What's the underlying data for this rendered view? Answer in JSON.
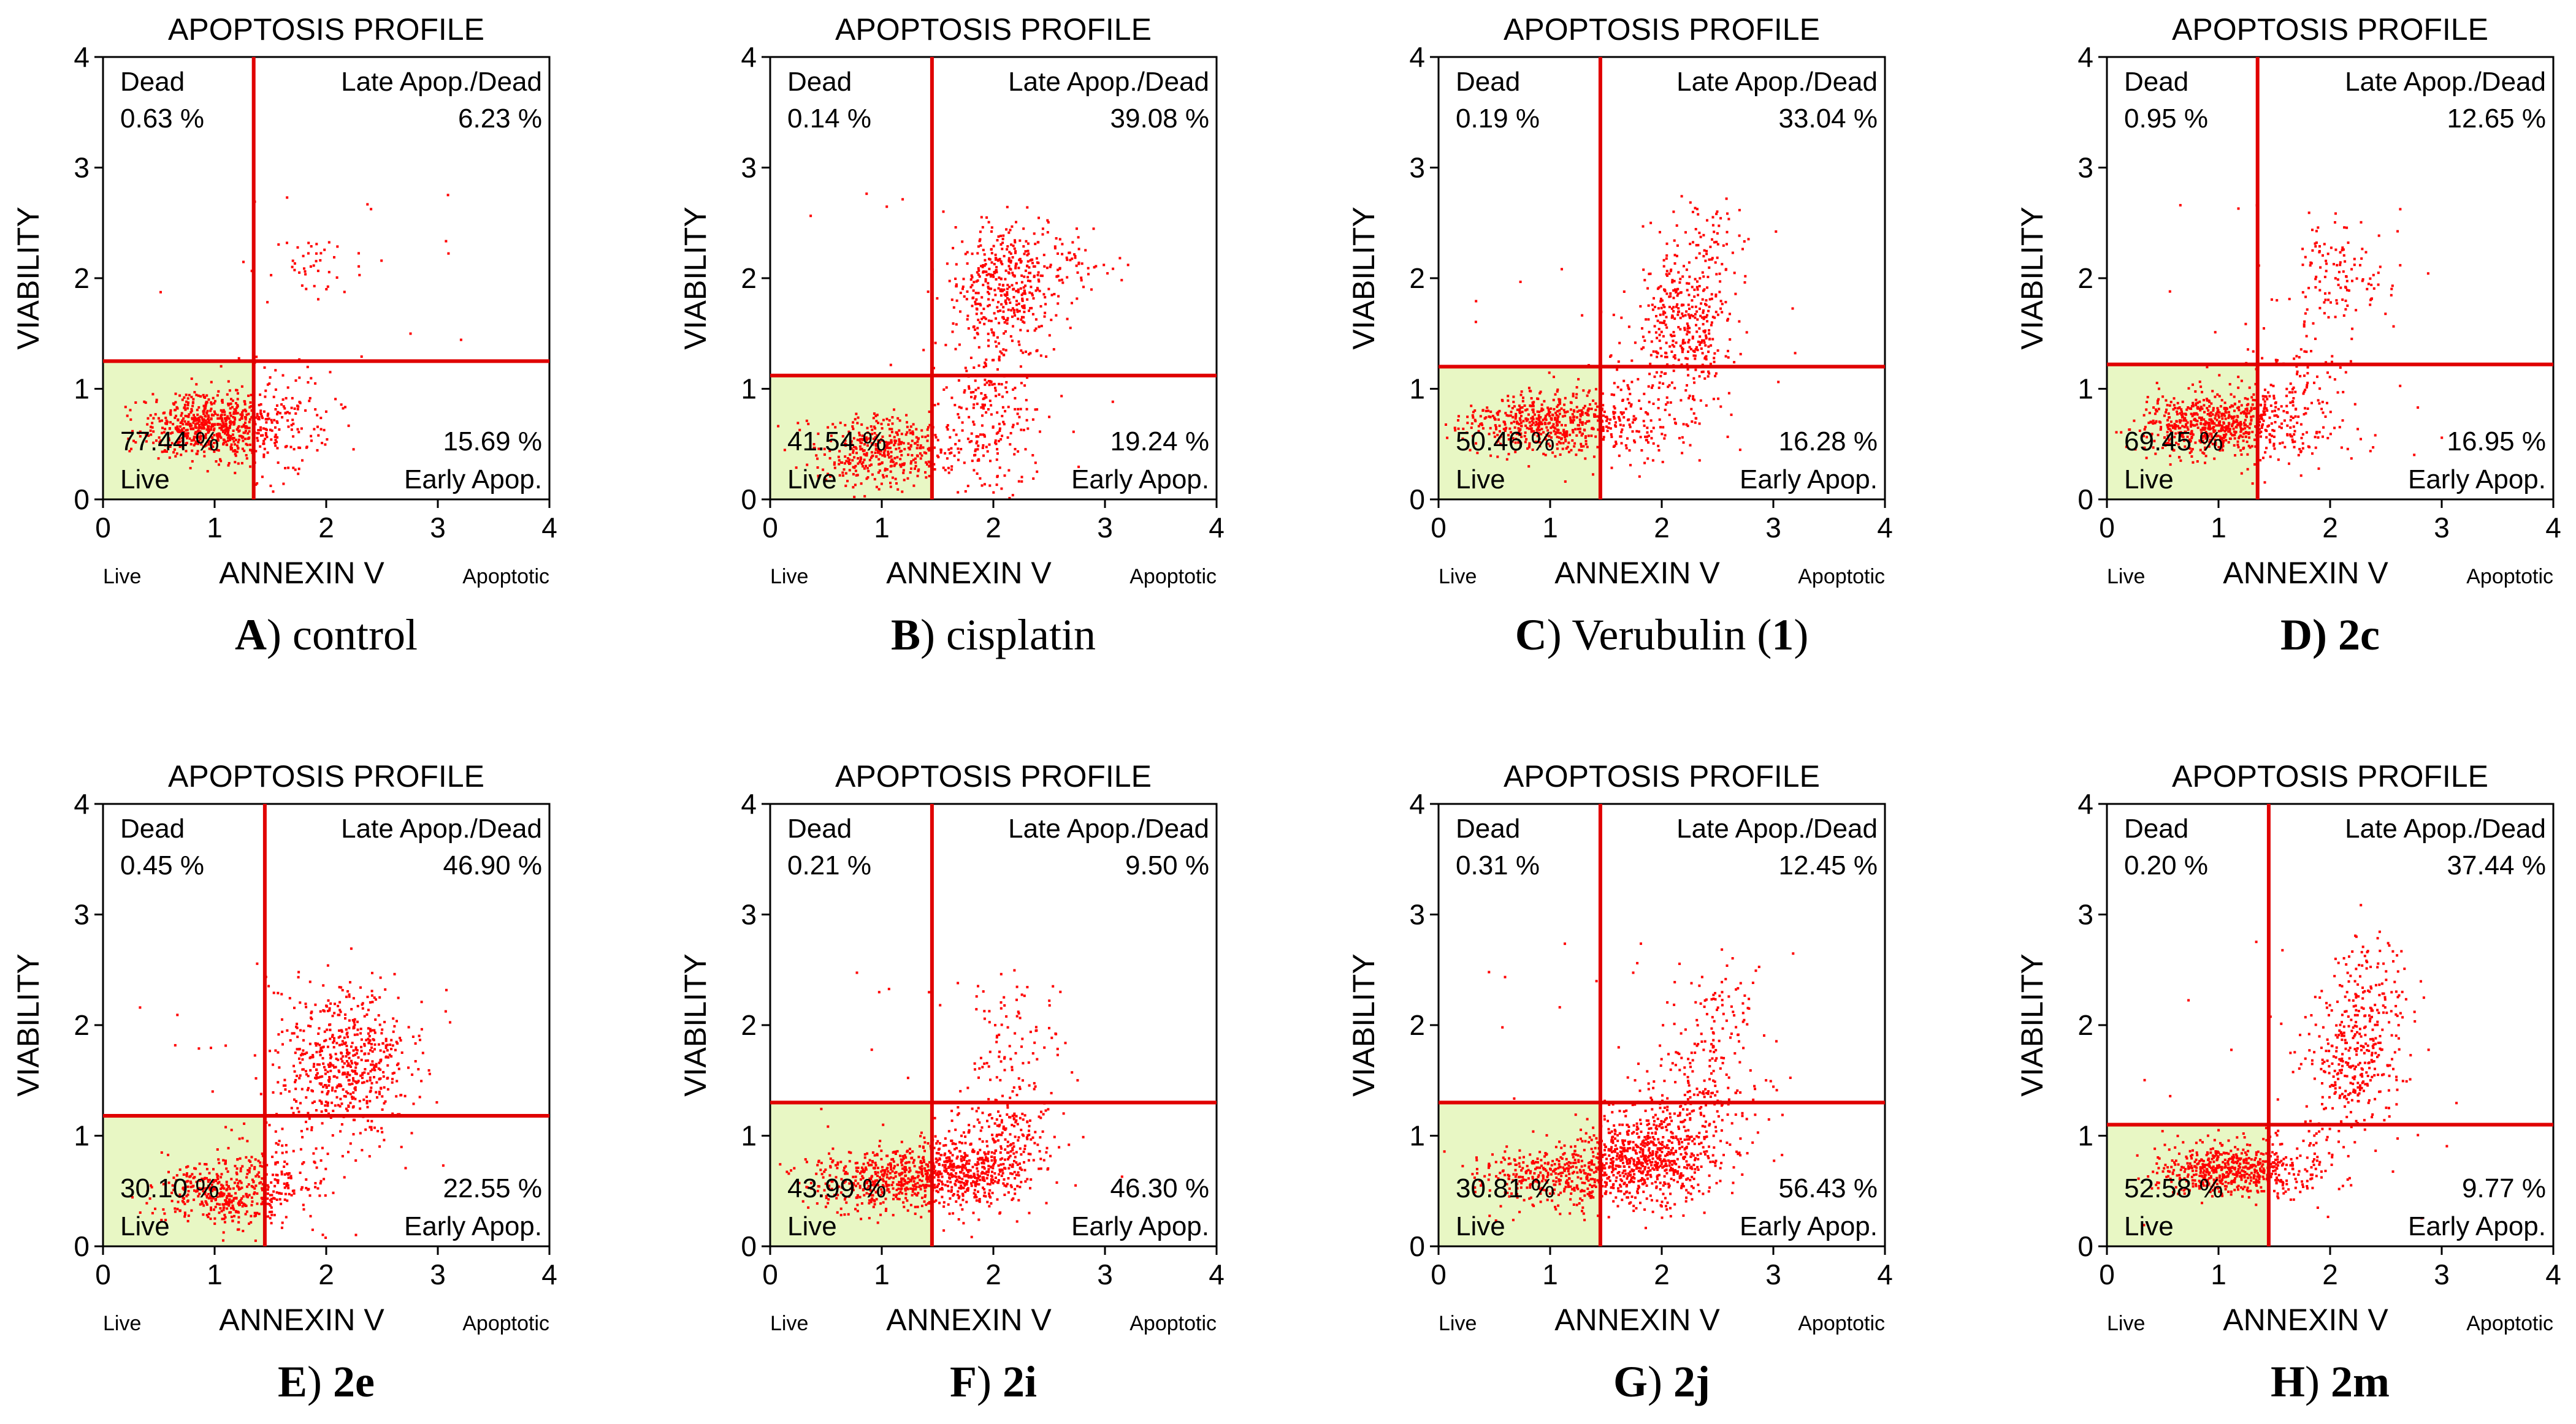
{
  "chart_data": [
    {
      "type": "scatter",
      "title": "APOPTOSIS PROFILE",
      "xlabel": "ANNEXIN V",
      "ylabel": "VIABILITY",
      "x_left_label": "Live",
      "x_right_label": "Apoptotic",
      "xlim": [
        0,
        4
      ],
      "ylim": [
        0,
        4
      ],
      "xticks": [
        "0",
        "1",
        "2",
        "3",
        "4"
      ],
      "yticks": [
        "0",
        "1",
        "2",
        "3",
        "4"
      ],
      "gate_x": 1.35,
      "gate_y": 1.25,
      "quadrants": {
        "dead": "0.63 %",
        "late": "6.23 %",
        "live": "77.44 %",
        "early": "15.69 %"
      },
      "quadrant_labels": {
        "dead": "Dead",
        "late": "Late Apop./Dead",
        "live": "Live",
        "early": "Early Apop."
      },
      "caption": {
        "letter": "A",
        "paren": ")",
        "text": " control",
        "bold": ""
      },
      "clusters": [
        [
          0.95,
          0.68,
          0.3,
          0.14,
          620
        ],
        [
          1.5,
          0.72,
          0.3,
          0.25,
          150
        ],
        [
          1.9,
          2.15,
          0.22,
          0.15,
          40
        ]
      ]
    },
    {
      "type": "scatter",
      "title": "APOPTOSIS PROFILE",
      "xlabel": "ANNEXIN V",
      "ylabel": "VIABILITY",
      "x_left_label": "Live",
      "x_right_label": "Apoptotic",
      "xlim": [
        0,
        4
      ],
      "ylim": [
        0,
        4
      ],
      "xticks": [
        "0",
        "1",
        "2",
        "3",
        "4"
      ],
      "yticks": [
        "0",
        "1",
        "2",
        "3",
        "4"
      ],
      "gate_x": 1.45,
      "gate_y": 1.12,
      "quadrants": {
        "dead": "0.14 %",
        "late": "39.08 %",
        "live": "41.54 %",
        "early": "19.24 %"
      },
      "quadrant_labels": {
        "dead": "Dead",
        "late": "Late Apop./Dead",
        "live": "Live",
        "early": "Early Apop."
      },
      "caption": {
        "letter": "B",
        "paren": ")",
        "text": " cisplatin",
        "bold": ""
      },
      "clusters": [
        [
          1.05,
          0.45,
          0.35,
          0.16,
          420
        ],
        [
          1.95,
          0.75,
          0.22,
          0.35,
          220
        ],
        [
          2.1,
          1.95,
          0.25,
          0.28,
          400
        ],
        [
          2.6,
          2.15,
          0.3,
          0.12,
          60
        ]
      ]
    },
    {
      "type": "scatter",
      "title": "APOPTOSIS PROFILE",
      "xlabel": "ANNEXIN V",
      "ylabel": "VIABILITY",
      "x_left_label": "Live",
      "x_right_label": "Apoptotic",
      "xlim": [
        0,
        4
      ],
      "ylim": [
        0,
        4
      ],
      "xticks": [
        "0",
        "1",
        "2",
        "3",
        "4"
      ],
      "yticks": [
        "0",
        "1",
        "2",
        "3",
        "4"
      ],
      "gate_x": 1.45,
      "gate_y": 1.2,
      "quadrants": {
        "dead": "0.19 %",
        "late": "33.04 %",
        "live": "50.46 %",
        "early": "16.28 %"
      },
      "quadrant_labels": {
        "dead": "Dead",
        "late": "Late Apop./Dead",
        "live": "Live",
        "early": "Early Apop."
      },
      "caption": {
        "letter": "C",
        "paren": ")",
        "text": " Verubulin (",
        "bold": "1",
        "after": ")"
      },
      "clusters": [
        [
          0.95,
          0.7,
          0.35,
          0.14,
          500
        ],
        [
          1.75,
          0.75,
          0.3,
          0.22,
          160
        ],
        [
          2.2,
          1.6,
          0.22,
          0.3,
          350
        ],
        [
          2.4,
          2.3,
          0.2,
          0.25,
          60
        ]
      ]
    },
    {
      "type": "scatter",
      "title": "APOPTOSIS PROFILE",
      "xlabel": "ANNEXIN V",
      "ylabel": "VIABILITY",
      "x_left_label": "Live",
      "x_right_label": "Apoptotic",
      "xlim": [
        0,
        4
      ],
      "ylim": [
        0,
        4
      ],
      "xticks": [
        "0",
        "1",
        "2",
        "3",
        "4"
      ],
      "yticks": [
        "0",
        "1",
        "2",
        "3",
        "4"
      ],
      "gate_x": 1.35,
      "gate_y": 1.22,
      "quadrants": {
        "dead": "0.95 %",
        "late": "12.65 %",
        "live": "69.45 %",
        "early": "16.95 %"
      },
      "quadrant_labels": {
        "dead": "Dead",
        "late": "Late Apop./Dead",
        "live": "Live",
        "early": "Early Apop."
      },
      "caption": {
        "letter": "D",
        "paren": ")",
        "text": " ",
        "bold": "2c",
        "allbold": true
      },
      "clusters": [
        [
          0.95,
          0.7,
          0.3,
          0.14,
          600
        ],
        [
          1.65,
          0.85,
          0.3,
          0.3,
          180
        ],
        [
          2.05,
          2.0,
          0.25,
          0.25,
          120
        ]
      ]
    },
    {
      "type": "scatter",
      "title": "APOPTOSIS PROFILE",
      "xlabel": "ANNEXIN V",
      "ylabel": "VIABILITY",
      "x_left_label": "Live",
      "x_right_label": "Apoptotic",
      "xlim": [
        0,
        4
      ],
      "ylim": [
        0,
        4
      ],
      "xticks": [
        "0",
        "1",
        "2",
        "3",
        "4"
      ],
      "yticks": [
        "0",
        "1",
        "2",
        "3",
        "4"
      ],
      "gate_x": 1.45,
      "gate_y": 1.18,
      "quadrants": {
        "dead": "0.45 %",
        "late": "46.90 %",
        "live": "30.10 %",
        "early": "22.55 %"
      },
      "quadrant_labels": {
        "dead": "Dead",
        "late": "Late Apop./Dead",
        "live": "Live",
        "early": "Early Apop."
      },
      "caption": {
        "letter": "E",
        "paren": ")",
        "text": " ",
        "bold": "2e"
      },
      "clusters": [
        [
          1.05,
          0.5,
          0.3,
          0.14,
          350
        ],
        [
          1.55,
          0.6,
          0.25,
          0.25,
          150
        ],
        [
          2.15,
          1.65,
          0.3,
          0.35,
          600
        ]
      ]
    },
    {
      "type": "scatter",
      "title": "APOPTOSIS PROFILE",
      "xlabel": "ANNEXIN V",
      "ylabel": "VIABILITY",
      "x_left_label": "Live",
      "x_right_label": "Apoptotic",
      "xlim": [
        0,
        4
      ],
      "ylim": [
        0,
        4
      ],
      "xticks": [
        "0",
        "1",
        "2",
        "3",
        "4"
      ],
      "yticks": [
        "0",
        "1",
        "2",
        "3",
        "4"
      ],
      "gate_x": 1.45,
      "gate_y": 1.3,
      "quadrants": {
        "dead": "0.21 %",
        "late": "9.50 %",
        "live": "43.99 %",
        "early": "46.30 %"
      },
      "quadrant_labels": {
        "dead": "Dead",
        "late": "Late Apop./Dead",
        "live": "Live",
        "early": "Early Apop."
      },
      "caption": {
        "letter": "F",
        "paren": ")",
        "text": " ",
        "bold": "2i"
      },
      "clusters": [
        [
          1.0,
          0.6,
          0.35,
          0.14,
          450
        ],
        [
          1.75,
          0.7,
          0.3,
          0.18,
          500
        ],
        [
          2.15,
          1.1,
          0.2,
          0.3,
          150
        ],
        [
          2.2,
          2.0,
          0.2,
          0.3,
          70
        ]
      ]
    },
    {
      "type": "scatter",
      "title": "APOPTOSIS PROFILE",
      "xlabel": "ANNEXIN V",
      "ylabel": "VIABILITY",
      "x_left_label": "Live",
      "x_right_label": "Apoptotic",
      "xlim": [
        0,
        4
      ],
      "ylim": [
        0,
        4
      ],
      "xticks": [
        "0",
        "1",
        "2",
        "3",
        "4"
      ],
      "yticks": [
        "0",
        "1",
        "2",
        "3",
        "4"
      ],
      "gate_x": 1.45,
      "gate_y": 1.3,
      "quadrants": {
        "dead": "0.31 %",
        "late": "12.45 %",
        "live": "30.81 %",
        "early": "56.43 %"
      },
      "quadrant_labels": {
        "dead": "Dead",
        "late": "Late Apop./Dead",
        "live": "Live",
        "early": "Early Apop."
      },
      "caption": {
        "letter": "G",
        "paren": ")",
        "text": " ",
        "bold": "2j"
      },
      "clusters": [
        [
          1.05,
          0.65,
          0.35,
          0.14,
          380
        ],
        [
          1.85,
          0.8,
          0.3,
          0.2,
          650
        ],
        [
          2.35,
          1.35,
          0.25,
          0.35,
          220
        ],
        [
          2.5,
          2.1,
          0.2,
          0.3,
          60
        ]
      ]
    },
    {
      "type": "scatter",
      "title": "APOPTOSIS PROFILE",
      "xlabel": "ANNEXIN V",
      "ylabel": "VIABILITY",
      "x_left_label": "Live",
      "x_right_label": "Apoptotic",
      "xlim": [
        0,
        4
      ],
      "ylim": [
        0,
        4
      ],
      "xticks": [
        "0",
        "1",
        "2",
        "3",
        "4"
      ],
      "yticks": [
        "0",
        "1",
        "2",
        "3",
        "4"
      ],
      "gate_x": 1.45,
      "gate_y": 1.1,
      "quadrants": {
        "dead": "0.20 %",
        "late": "37.44 %",
        "live": "52.58 %",
        "early": "9.77 %"
      },
      "quadrant_labels": {
        "dead": "Dead",
        "late": "Late Apop./Dead",
        "live": "Live",
        "early": "Early Apop."
      },
      "caption": {
        "letter": "H",
        "paren": ")",
        "text": " ",
        "bold": "2m"
      },
      "clusters": [
        [
          1.05,
          0.7,
          0.3,
          0.12,
          520
        ],
        [
          1.7,
          0.8,
          0.25,
          0.18,
          100
        ],
        [
          2.2,
          1.7,
          0.2,
          0.3,
          300
        ],
        [
          2.35,
          2.35,
          0.18,
          0.25,
          90
        ]
      ]
    }
  ],
  "colors": {
    "gate": "#e00000",
    "dots": "#ff0000",
    "live_fill": "#e8f7c4",
    "axis": "#000000"
  }
}
